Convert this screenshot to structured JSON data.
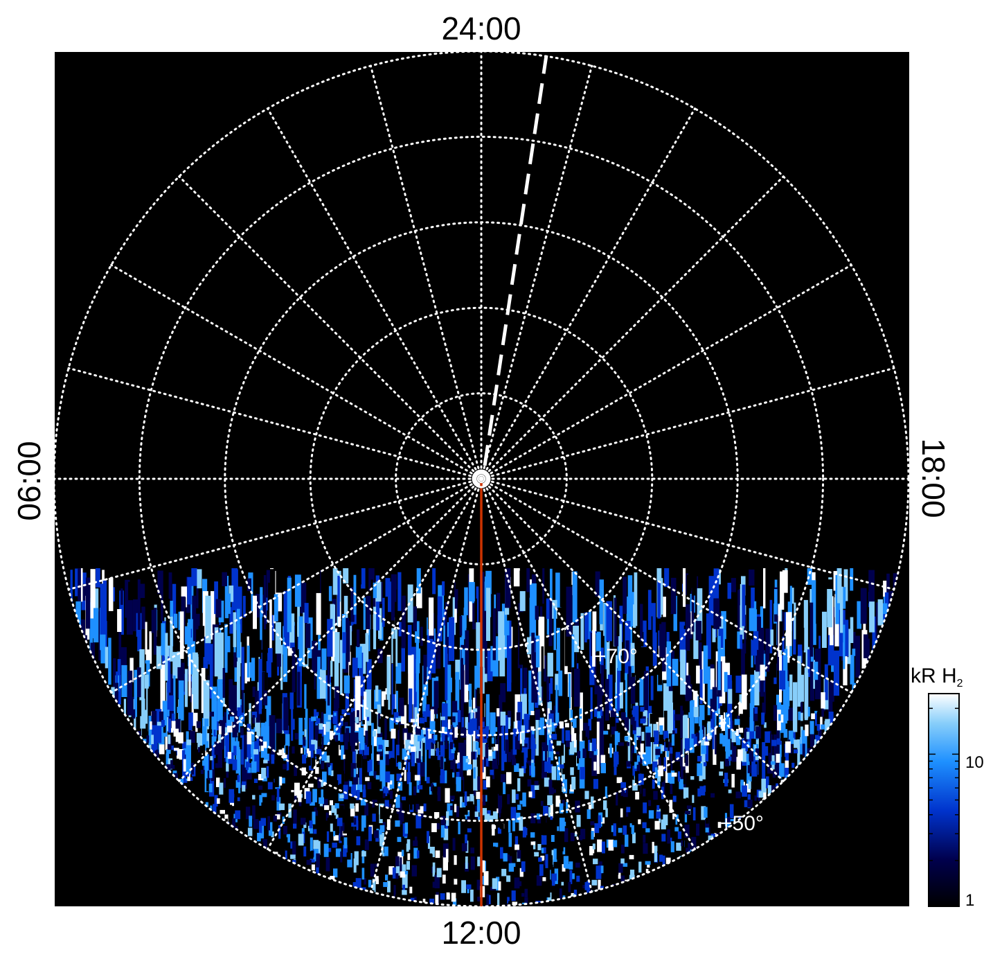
{
  "figure": {
    "projection": "polar",
    "background_color": "#000000",
    "grid_color": "#ffffff",
    "grid_style": "dotted",
    "local_time_labels": {
      "top": "24:00",
      "bottom": "12:00",
      "left": "06:00",
      "right": "18:00"
    },
    "latitude_labels": [
      "+70°",
      "+50°"
    ],
    "latitude_circles_deg": [
      90,
      80,
      70,
      60,
      50,
      40
    ],
    "meridian_spacing_hours": 1,
    "noon_meridian_color": "#cc3300",
    "dashed_line_color": "#ffffff",
    "emission_colormap": [
      "#000000",
      "#00004d",
      "#0033cc",
      "#1e90ff",
      "#87cefa",
      "#ffffff"
    ]
  },
  "colorbar": {
    "title_main": "kR H",
    "title_sub": "2",
    "scale": "log",
    "range": [
      1,
      25
    ],
    "tick_labels": [
      "1",
      "10"
    ],
    "tick_values": [
      1,
      10
    ]
  }
}
